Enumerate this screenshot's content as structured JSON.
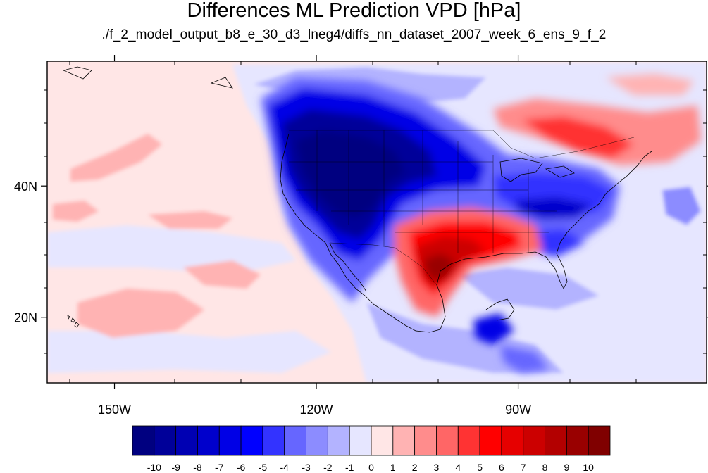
{
  "title": "Differences ML Prediction VPD [hPa]",
  "subtitle": "./f_2_model_output_b8_e_30_d3_lneg4/diffs_nn_dataset_2007_week_6_ens_9_f_2",
  "map": {
    "lon_range": [
      -160,
      -62
    ],
    "lat_range": [
      10,
      59
    ],
    "lon_ticks": [
      {
        "value": -150,
        "label": "150W"
      },
      {
        "value": -120,
        "label": "120W"
      },
      {
        "value": -90,
        "label": "90W"
      }
    ],
    "lat_ticks": [
      {
        "value": 40,
        "label": "40N"
      },
      {
        "value": 20,
        "label": "20N"
      }
    ],
    "background_value": 0.5
  },
  "colorbar": {
    "labels": [
      "-10",
      "-9",
      "-8",
      "-7",
      "-6",
      "-5",
      "-4",
      "-3",
      "-2",
      "-1",
      "0",
      "1",
      "2",
      "3",
      "4",
      "5",
      "6",
      "7",
      "8",
      "9",
      "10"
    ],
    "colors": [
      "#000080",
      "#000099",
      "#0000b3",
      "#0000cc",
      "#0000e6",
      "#0000ff",
      "#3333ff",
      "#6666ff",
      "#8c8cff",
      "#b3b3ff",
      "#e6e6ff",
      "#ffe6e6",
      "#ffb3b3",
      "#ff8c8c",
      "#ff6666",
      "#ff3333",
      "#ff0000",
      "#e60000",
      "#cc0000",
      "#b30000",
      "#990000",
      "#800000"
    ]
  }
}
